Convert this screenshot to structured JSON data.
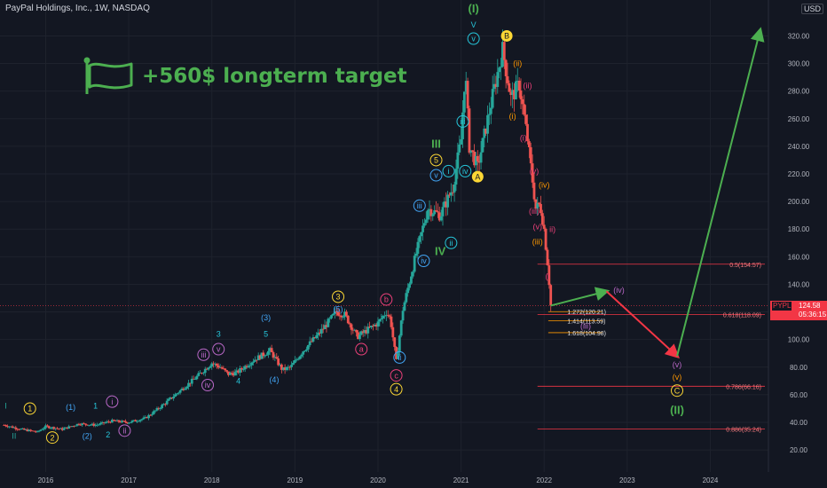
{
  "header": {
    "title": "PayPal Holdings, Inc., 1W, NASDAQ",
    "currency": "USD"
  },
  "banner": {
    "text": "+560$ longterm target",
    "icon": "flag-icon"
  },
  "price_tag": {
    "symbol": "PYPL",
    "price": "124.58",
    "countdown": "05:36:15"
  },
  "colors": {
    "up": "#26a69a",
    "down": "#ef5350",
    "bg": "#131722",
    "grid": "#1e222d",
    "green": "#4caf50",
    "yellow": "#fdd835",
    "blue": "#42a5f5",
    "orange": "#ff9800",
    "purple": "#ba68c8",
    "pink": "#ec407a",
    "teal": "#26c6da",
    "red": "#f23645"
  },
  "chart_data": {
    "type": "candlestick",
    "title": "PayPal Holdings, Inc., 1W, NASDAQ",
    "x_ticks": [
      "2016",
      "2017",
      "2018",
      "2019",
      "2020",
      "2021",
      "2022",
      "2023",
      "2024"
    ],
    "y_ticks": [
      "20.00",
      "40.00",
      "60.00",
      "80.00",
      "100.00",
      "120.00",
      "140.00",
      "160.00",
      "180.00",
      "200.00",
      "220.00",
      "240.00",
      "260.00",
      "280.00",
      "300.00",
      "320.00"
    ],
    "ylim": [
      4,
      346
    ],
    "xlim": [
      2015.45,
      2024.7
    ],
    "price_path": [
      [
        2015.5,
        38
      ],
      [
        2015.7,
        35
      ],
      [
        2015.9,
        33
      ],
      [
        2016.0,
        37
      ],
      [
        2016.2,
        35
      ],
      [
        2016.4,
        39
      ],
      [
        2016.6,
        38
      ],
      [
        2016.8,
        41
      ],
      [
        2017.0,
        40
      ],
      [
        2017.2,
        43
      ],
      [
        2017.4,
        52
      ],
      [
        2017.6,
        62
      ],
      [
        2017.8,
        72
      ],
      [
        2018.0,
        83
      ],
      [
        2018.1,
        80
      ],
      [
        2018.2,
        75
      ],
      [
        2018.3,
        76
      ],
      [
        2018.5,
        85
      ],
      [
        2018.7,
        92
      ],
      [
        2018.85,
        78
      ],
      [
        2018.95,
        80
      ],
      [
        2019.1,
        92
      ],
      [
        2019.3,
        105
      ],
      [
        2019.5,
        120
      ],
      [
        2019.6,
        118
      ],
      [
        2019.75,
        102
      ],
      [
        2019.85,
        106
      ],
      [
        2020.0,
        112
      ],
      [
        2020.1,
        120
      ],
      [
        2020.15,
        115
      ],
      [
        2020.22,
        84
      ],
      [
        2020.3,
        122
      ],
      [
        2020.45,
        160
      ],
      [
        2020.6,
        195
      ],
      [
        2020.75,
        190
      ],
      [
        2020.9,
        210
      ],
      [
        2021.0,
        245
      ],
      [
        2021.05,
        295
      ],
      [
        2021.1,
        240
      ],
      [
        2021.2,
        225
      ],
      [
        2021.35,
        268
      ],
      [
        2021.5,
        310
      ],
      [
        2021.6,
        275
      ],
      [
        2021.7,
        285
      ],
      [
        2021.8,
        245
      ],
      [
        2021.9,
        195
      ],
      [
        2021.95,
        198
      ],
      [
        2022.0,
        180
      ],
      [
        2022.05,
        150
      ],
      [
        2022.08,
        124.58
      ]
    ],
    "projection": {
      "x": [
        2022.08,
        2022.75,
        2023.6,
        2024.6
      ],
      "y": [
        124.58,
        135,
        88,
        324
      ]
    },
    "fibonacci": [
      {
        "label": "0.5(154.57)",
        "value": 154.57
      },
      {
        "label": "0.618(118.09)",
        "value": 118.09
      },
      {
        "label": "0.786(66.16)",
        "value": 66.16
      },
      {
        "label": "0.886(35.24)",
        "value": 35.24
      }
    ],
    "extensions": [
      {
        "label": "1.272(120.21)",
        "value": 120.21
      },
      {
        "label": "1.414(113.59)",
        "value": 113.59
      },
      {
        "label": "1.618(104.98)",
        "value": 104.98
      }
    ],
    "wave_labels": [
      {
        "text": "I",
        "x": 2015.52,
        "y": 52,
        "color": "#26a69a",
        "shape": "none"
      },
      {
        "text": "II",
        "x": 2015.62,
        "y": 30,
        "color": "#26a69a",
        "shape": "none"
      },
      {
        "text": "1",
        "x": 2015.81,
        "y": 50,
        "color": "#fdd835",
        "shape": "circle"
      },
      {
        "text": "2",
        "x": 2016.08,
        "y": 29,
        "color": "#fdd835",
        "shape": "circle"
      },
      {
        "text": "(1)",
        "x": 2016.3,
        "y": 51,
        "color": "#42a5f5",
        "shape": "none"
      },
      {
        "text": "(2)",
        "x": 2016.5,
        "y": 30,
        "color": "#42a5f5",
        "shape": "none"
      },
      {
        "text": "1",
        "x": 2016.6,
        "y": 52,
        "color": "#26c6da",
        "shape": "none"
      },
      {
        "text": "2",
        "x": 2016.75,
        "y": 31,
        "color": "#26c6da",
        "shape": "none"
      },
      {
        "text": "i",
        "x": 2016.8,
        "y": 55,
        "color": "#ba68c8",
        "shape": "circle"
      },
      {
        "text": "ii",
        "x": 2016.95,
        "y": 34,
        "color": "#ba68c8",
        "shape": "circle"
      },
      {
        "text": "iii",
        "x": 2017.9,
        "y": 89,
        "color": "#ba68c8",
        "shape": "circle"
      },
      {
        "text": "iv",
        "x": 2017.95,
        "y": 67,
        "color": "#ba68c8",
        "shape": "circle"
      },
      {
        "text": "v",
        "x": 2018.08,
        "y": 93,
        "color": "#ba68c8",
        "shape": "circle"
      },
      {
        "text": "3",
        "x": 2018.08,
        "y": 104,
        "color": "#26c6da",
        "shape": "none"
      },
      {
        "text": "4",
        "x": 2018.32,
        "y": 70,
        "color": "#26c6da",
        "shape": "none"
      },
      {
        "text": "5",
        "x": 2018.65,
        "y": 104,
        "color": "#26c6da",
        "shape": "none"
      },
      {
        "text": "(3)",
        "x": 2018.65,
        "y": 116,
        "color": "#42a5f5",
        "shape": "none"
      },
      {
        "text": "(4)",
        "x": 2018.75,
        "y": 71,
        "color": "#42a5f5",
        "shape": "none"
      },
      {
        "text": "3",
        "x": 2019.52,
        "y": 131,
        "color": "#fdd835",
        "shape": "circle"
      },
      {
        "text": "(5)",
        "x": 2019.52,
        "y": 122,
        "color": "#42a5f5",
        "shape": "none"
      },
      {
        "text": "a",
        "x": 2019.8,
        "y": 93,
        "color": "#ec407a",
        "shape": "circle"
      },
      {
        "text": "b",
        "x": 2020.1,
        "y": 129,
        "color": "#ec407a",
        "shape": "circle"
      },
      {
        "text": "c",
        "x": 2020.22,
        "y": 74,
        "color": "#ec407a",
        "shape": "circle"
      },
      {
        "text": "ii",
        "x": 2020.26,
        "y": 87,
        "color": "#42a5f5",
        "shape": "circle"
      },
      {
        "text": "4",
        "x": 2020.22,
        "y": 64,
        "color": "#fdd835",
        "shape": "circle"
      },
      {
        "text": "iii",
        "x": 2020.5,
        "y": 197,
        "color": "#42a5f5",
        "shape": "circle"
      },
      {
        "text": "iv",
        "x": 2020.55,
        "y": 157,
        "color": "#42a5f5",
        "shape": "circle"
      },
      {
        "text": "v",
        "x": 2020.7,
        "y": 219,
        "color": "#42a5f5",
        "shape": "circle"
      },
      {
        "text": "5",
        "x": 2020.7,
        "y": 230,
        "color": "#fdd835",
        "shape": "circle"
      },
      {
        "text": "III",
        "x": 2020.7,
        "y": 242,
        "color": "#4caf50",
        "shape": "none"
      },
      {
        "text": "IV",
        "x": 2020.75,
        "y": 164,
        "color": "#4caf50",
        "shape": "none"
      },
      {
        "text": "i",
        "x": 2020.85,
        "y": 222,
        "color": "#26c6da",
        "shape": "circle"
      },
      {
        "text": "ii",
        "x": 2020.88,
        "y": 170,
        "color": "#26c6da",
        "shape": "circle"
      },
      {
        "text": "iii",
        "x": 2021.02,
        "y": 258,
        "color": "#26c6da",
        "shape": "circle"
      },
      {
        "text": "iv",
        "x": 2021.05,
        "y": 222,
        "color": "#26c6da",
        "shape": "circle"
      },
      {
        "text": "v",
        "x": 2021.15,
        "y": 318,
        "color": "#26c6da",
        "shape": "circle"
      },
      {
        "text": "V",
        "x": 2021.15,
        "y": 328,
        "color": "#26c6da",
        "shape": "none"
      },
      {
        "text": "(I)",
        "x": 2021.15,
        "y": 340,
        "color": "#4caf50",
        "shape": "none"
      },
      {
        "text": "A",
        "x": 2021.2,
        "y": 218,
        "color": "#fdd835",
        "shape": "filled"
      },
      {
        "text": "B",
        "x": 2021.55,
        "y": 320,
        "color": "#fdd835",
        "shape": "filled"
      },
      {
        "text": "(ii)",
        "x": 2021.68,
        "y": 300,
        "color": "#ff9800",
        "shape": "none"
      },
      {
        "text": "(i)",
        "x": 2021.62,
        "y": 262,
        "color": "#ff9800",
        "shape": "none"
      },
      {
        "text": "(ii)",
        "x": 2021.8,
        "y": 284,
        "color": "#ec407a",
        "shape": "none"
      },
      {
        "text": "(i)",
        "x": 2021.75,
        "y": 246,
        "color": "#ec407a",
        "shape": "none"
      },
      {
        "text": "(v)",
        "x": 2021.88,
        "y": 222,
        "color": "#ec407a",
        "shape": "none"
      },
      {
        "text": "(iv)",
        "x": 2022.0,
        "y": 212,
        "color": "#ff9800",
        "shape": "none"
      },
      {
        "text": "(iii)",
        "x": 2021.88,
        "y": 193,
        "color": "#ec407a",
        "shape": "none"
      },
      {
        "text": "(v)",
        "x": 2021.92,
        "y": 182,
        "color": "#ec407a",
        "shape": "none"
      },
      {
        "text": "(iii)",
        "x": 2021.92,
        "y": 171,
        "color": "#ff9800",
        "shape": "none"
      },
      {
        "text": "ii)",
        "x": 2022.1,
        "y": 180,
        "color": "#ec407a",
        "shape": "none"
      },
      {
        "text": "(i",
        "x": 2022.04,
        "y": 146,
        "color": "#ec407a",
        "shape": "none"
      },
      {
        "text": "(iv)",
        "x": 2022.9,
        "y": 136,
        "color": "#ba68c8",
        "shape": "none"
      },
      {
        "text": "(iii)",
        "x": 2022.5,
        "y": 110,
        "color": "#ba68c8",
        "shape": "none"
      },
      {
        "text": "(v)",
        "x": 2023.6,
        "y": 82,
        "color": "#ba68c8",
        "shape": "none"
      },
      {
        "text": "(v)",
        "x": 2023.6,
        "y": 73,
        "color": "#ff9800",
        "shape": "none"
      },
      {
        "text": "C",
        "x": 2023.6,
        "y": 63,
        "color": "#fdd835",
        "shape": "circle"
      },
      {
        "text": "(II)",
        "x": 2023.6,
        "y": 49,
        "color": "#4caf50",
        "shape": "none"
      }
    ]
  }
}
